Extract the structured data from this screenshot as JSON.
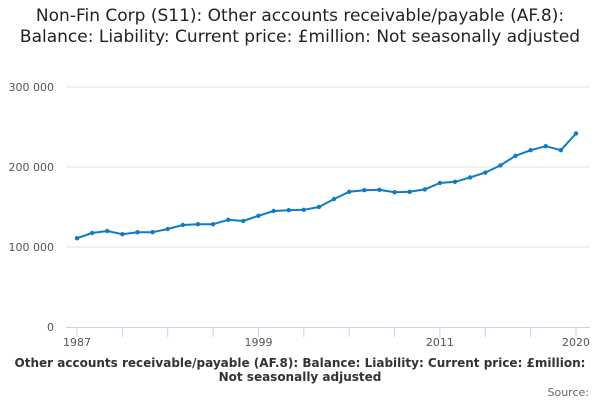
{
  "chart_data": {
    "type": "line",
    "title": "Non-Fin Corp (S11): Other accounts receivable/payable (AF.8): Balance: Liability: Current price: £million: Not seasonally adjusted",
    "xlabel": "Other accounts receivable/payable (AF.8): Balance: Liability: Current price: £million: Not seasonally adjusted",
    "ylabel": "",
    "source_label": "Source:",
    "ylim": [
      0,
      300000
    ],
    "yticks": [
      0,
      100000,
      200000,
      300000
    ],
    "ytick_labels": [
      "0",
      "100 000",
      "200 000",
      "300 000"
    ],
    "xlim": [
      1987,
      2020
    ],
    "xtick_marks": [
      1987,
      1990,
      1993,
      1996,
      1999,
      2002,
      2005,
      2008,
      2011,
      2014,
      2017,
      2020
    ],
    "xtick_labels": [
      "1987",
      "1999",
      "2011",
      "2020"
    ],
    "grid": true,
    "line_color": "#0f7cc4",
    "x": [
      1987,
      1988,
      1989,
      1990,
      1991,
      1992,
      1993,
      1994,
      1995,
      1996,
      1997,
      1998,
      1999,
      2000,
      2001,
      2002,
      2003,
      2004,
      2005,
      2006,
      2007,
      2008,
      2009,
      2010,
      2011,
      2012,
      2013,
      2014,
      2015,
      2016,
      2017,
      2018,
      2019,
      2020
    ],
    "values": [
      111000,
      117500,
      120000,
      116000,
      118500,
      118500,
      122500,
      127500,
      128500,
      128500,
      134000,
      132500,
      139000,
      145000,
      146000,
      146500,
      150000,
      160000,
      169000,
      171000,
      171500,
      168500,
      169000,
      172000,
      180000,
      181500,
      187000,
      193000,
      202000,
      214000,
      221000,
      226000,
      221000,
      242000
    ]
  }
}
